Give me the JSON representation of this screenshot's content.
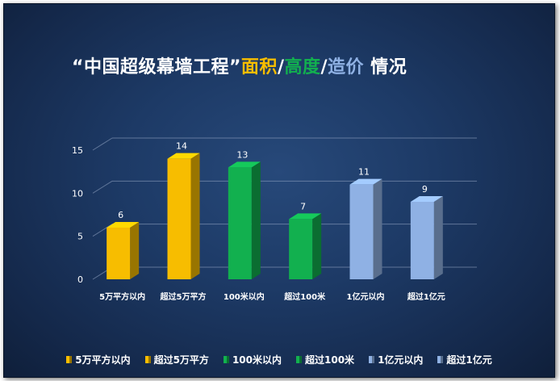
{
  "title": {
    "main": "“中国超级幕墙工程”",
    "area": "面积",
    "slash1": "/",
    "height": "高度",
    "slash2": "/",
    "cost": "造价",
    "tail": "情况"
  },
  "colors": {
    "yellow": "#f7bd00",
    "green": "#12b04f",
    "blue": "#8fb1e4"
  },
  "chart_data": {
    "type": "bar",
    "categories": [
      "5万平方以内",
      "超过5万平方",
      "100米以内",
      "超过100米",
      "1亿元以内",
      "超过1亿元"
    ],
    "values": [
      6,
      14,
      13,
      7,
      11,
      9
    ],
    "bar_colors": [
      "yellow",
      "yellow",
      "green",
      "green",
      "blue",
      "blue"
    ],
    "yticks": [
      "0",
      "5",
      "10",
      "15"
    ],
    "ylim": [
      0,
      15
    ],
    "grid": true,
    "legend_position": "bottom"
  },
  "legend": [
    "5万平方以内",
    "超过5万平方",
    "100米以内",
    "超过100米",
    "1亿元以内",
    "超过1亿元"
  ]
}
